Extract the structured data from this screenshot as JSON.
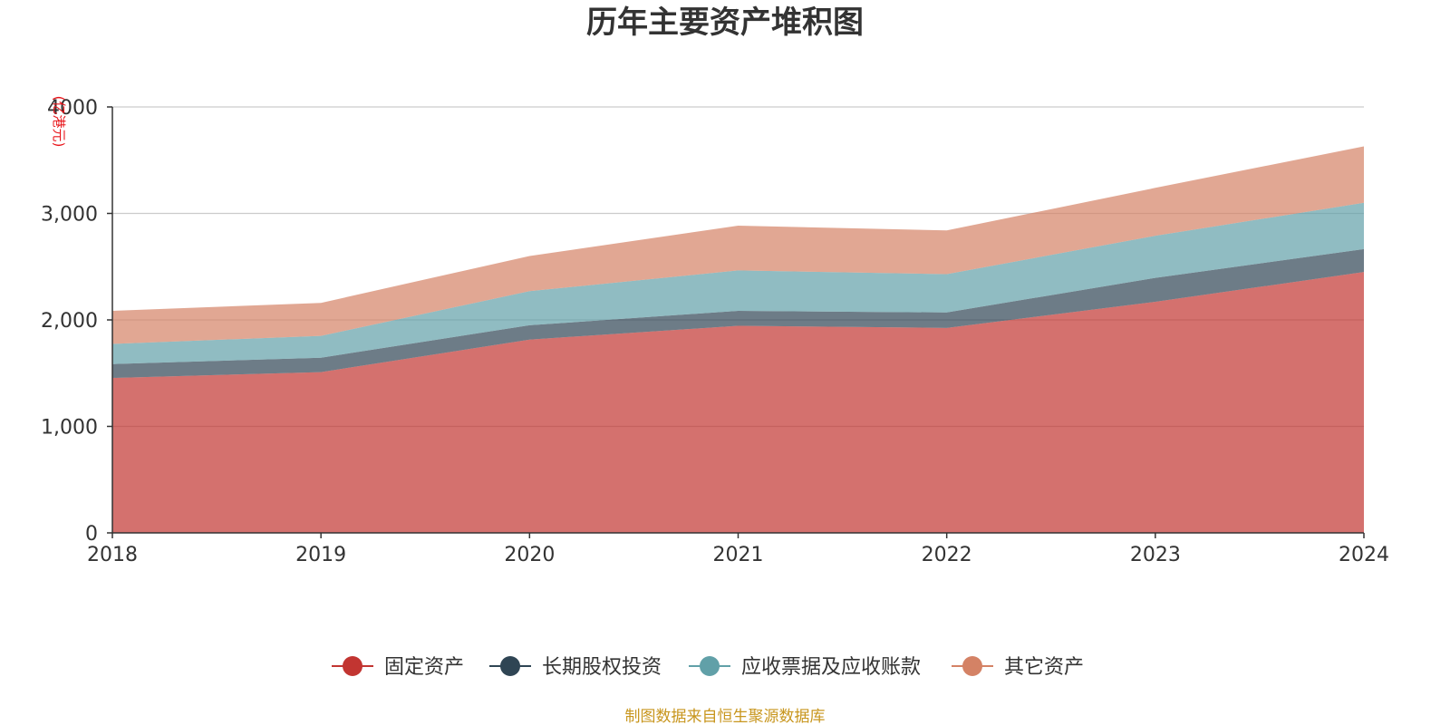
{
  "chart_data": {
    "type": "area",
    "stacked": true,
    "title": "历年主要资产堆积图",
    "unit_label": "(亿港元)",
    "x": [
      "2018",
      "2019",
      "2020",
      "2021",
      "2022",
      "2023",
      "2024"
    ],
    "ylim": [
      0,
      4000
    ],
    "y_ticks": [
      "0",
      "1,000",
      "2,000",
      "3,000",
      "4000"
    ],
    "grid": true,
    "legend_position": "bottom",
    "series": [
      {
        "name": "固定资产",
        "color": "#c23531",
        "values": [
          1455,
          1510,
          1815,
          1945,
          1925,
          2170,
          2450
        ]
      },
      {
        "name": "长期股权投资",
        "color": "#2f4554",
        "values": [
          130,
          135,
          135,
          140,
          145,
          225,
          215
        ]
      },
      {
        "name": "应收票据及应收账款",
        "color": "#61a0a8",
        "values": [
          190,
          205,
          320,
          380,
          360,
          395,
          435
        ]
      },
      {
        "name": "其它资产",
        "color": "#d48265",
        "values": [
          310,
          310,
          330,
          420,
          410,
          450,
          530
        ]
      }
    ],
    "source_note": "制图数据来自恒生聚源数据库"
  }
}
